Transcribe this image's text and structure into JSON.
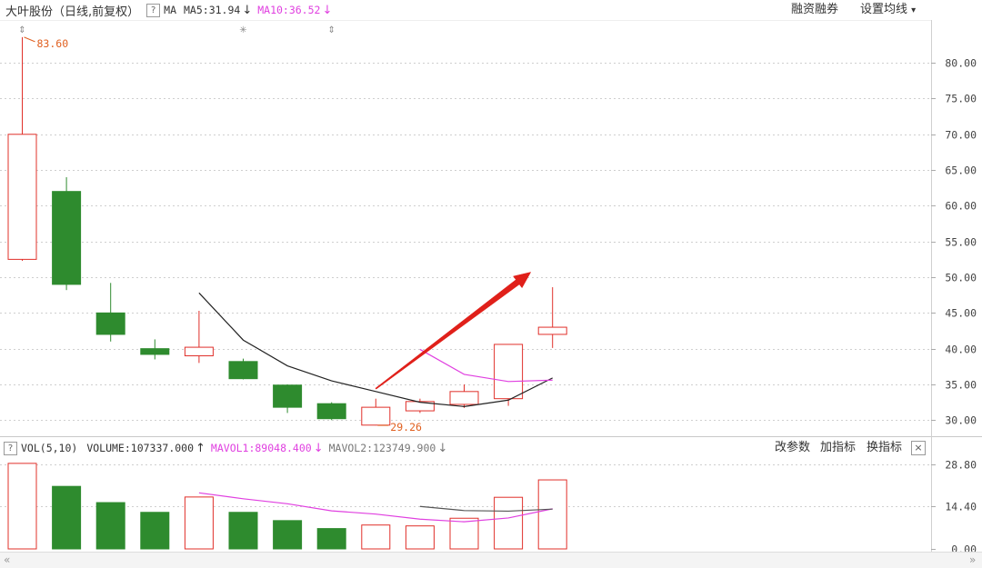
{
  "header": {
    "stock_title": "大叶股份（日线,前复权）",
    "help_mark": "?",
    "ma_label": "MA",
    "ma5_text": "MA5:31.94",
    "ma5_arrow": "↓",
    "ma10_text": "MA10:36.52",
    "ma10_arrow": "↓",
    "margin_link": "融资融券",
    "settings_link": "设置均线",
    "settings_caret": "▾"
  },
  "volume_header": {
    "help_mark": "?",
    "vol_label": "VOL(5,10)",
    "volume_text": "VOLUME:107337.000",
    "volume_arrow": "↑",
    "mavol1_text": "MAVOL1:89048.400",
    "mavol1_arrow": "↓",
    "mavol2_text": "MAVOL2:123749.900",
    "mavol2_arrow": "↓",
    "btn_params": "改参数",
    "btn_add": "加指标",
    "btn_switch": "换指标",
    "btn_close": "×"
  },
  "scroll": {
    "left": "«",
    "right": "»"
  },
  "colors": {
    "up": "#e0302a",
    "down": "#2e8b2e",
    "ma5": "#222222",
    "ma10": "#e040e0",
    "annotation": "#e06020",
    "trend_arrow": "#e0201a",
    "grid": "#cfcfcf"
  },
  "chart_data": [
    {
      "type": "candlestick",
      "ylim": [
        28,
        86
      ],
      "y_ticks": [
        "80.00",
        "75.00",
        "70.00",
        "65.00",
        "60.00",
        "55.00",
        "50.00",
        "45.00",
        "40.00",
        "35.00",
        "30.00"
      ],
      "candles": [
        {
          "open": 52.5,
          "close": 70.0,
          "high": 83.6,
          "low": 52.3
        },
        {
          "open": 62.0,
          "close": 49.0,
          "high": 64.0,
          "low": 48.2
        },
        {
          "open": 45.0,
          "close": 42.0,
          "high": 49.2,
          "low": 41.0
        },
        {
          "open": 40.0,
          "close": 39.2,
          "high": 41.3,
          "low": 38.5
        },
        {
          "open": 39.0,
          "close": 40.2,
          "high": 45.3,
          "low": 38.0
        },
        {
          "open": 38.2,
          "close": 35.8,
          "high": 38.6,
          "low": 35.7
        },
        {
          "open": 34.9,
          "close": 31.8,
          "high": 35.0,
          "low": 31.0
        },
        {
          "open": 32.3,
          "close": 30.2,
          "high": 32.5,
          "low": 30.0
        },
        {
          "open": 29.3,
          "close": 31.8,
          "high": 33.0,
          "low": 29.26
        },
        {
          "open": 31.3,
          "close": 32.6,
          "high": 33.0,
          "low": 31.0
        },
        {
          "open": 32.2,
          "close": 34.0,
          "high": 35.0,
          "low": 31.7
        },
        {
          "open": 33.0,
          "close": 40.6,
          "high": 40.6,
          "low": 32.0
        },
        {
          "open": 42.0,
          "close": 43.0,
          "high": 48.6,
          "low": 40.1
        }
      ],
      "ma5": [
        null,
        null,
        null,
        null,
        47.8,
        41.2,
        37.6,
        35.5,
        34.0,
        32.5,
        31.9,
        32.8,
        35.9
      ],
      "ma10": [
        null,
        null,
        null,
        null,
        null,
        null,
        null,
        null,
        null,
        39.9,
        36.4,
        35.4,
        35.6
      ],
      "annotations": [
        {
          "label": "83.60",
          "candle": 0,
          "price": 83.6
        },
        {
          "label": "29.26",
          "candle": 8,
          "price": 29.26
        }
      ],
      "markers": [
        {
          "candle": 0,
          "glyph": "⇕"
        },
        {
          "candle": 5,
          "glyph": "✳"
        },
        {
          "candle": 7,
          "glyph": "⇕"
        }
      ],
      "trend_arrow": {
        "from": {
          "candle": 8,
          "price": 34.4
        },
        "to": {
          "candle": 12,
          "price": 50.7
        }
      }
    },
    {
      "type": "bar",
      "ylim": [
        0,
        30.5
      ],
      "y_ticks": [
        "28.80",
        "14.40",
        "0.00"
      ],
      "values": [
        29.0,
        21.2,
        15.7,
        12.4,
        17.6,
        12.4,
        9.6,
        6.9,
        8.1,
        7.8,
        10.4,
        17.5,
        23.4
      ],
      "up": [
        true,
        false,
        false,
        false,
        true,
        false,
        false,
        false,
        true,
        true,
        true,
        true,
        true
      ],
      "mavol1": [
        null,
        null,
        null,
        null,
        19.0,
        17.0,
        15.3,
        12.9,
        11.8,
        10.1,
        9.2,
        10.5,
        13.6
      ],
      "mavol2": [
        null,
        null,
        null,
        null,
        null,
        null,
        null,
        null,
        null,
        14.4,
        13.0,
        12.8,
        13.5
      ]
    }
  ]
}
